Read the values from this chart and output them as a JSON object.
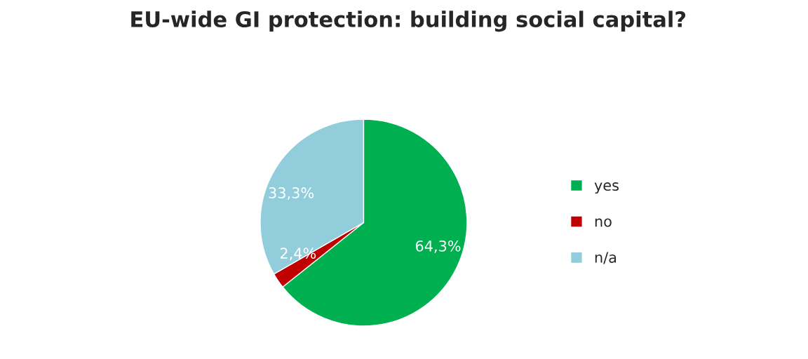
{
  "chart_data": {
    "type": "pie",
    "title": "EU-wide GI protection: building social capital?",
    "categories": [
      "yes",
      "no",
      "n/a"
    ],
    "values": [
      64.3,
      2.4,
      33.3
    ],
    "value_labels": [
      "64,3%",
      "2,4%",
      "33,3%"
    ],
    "colors": [
      "#00b050",
      "#c00000",
      "#92cddc"
    ],
    "legend": "right"
  }
}
